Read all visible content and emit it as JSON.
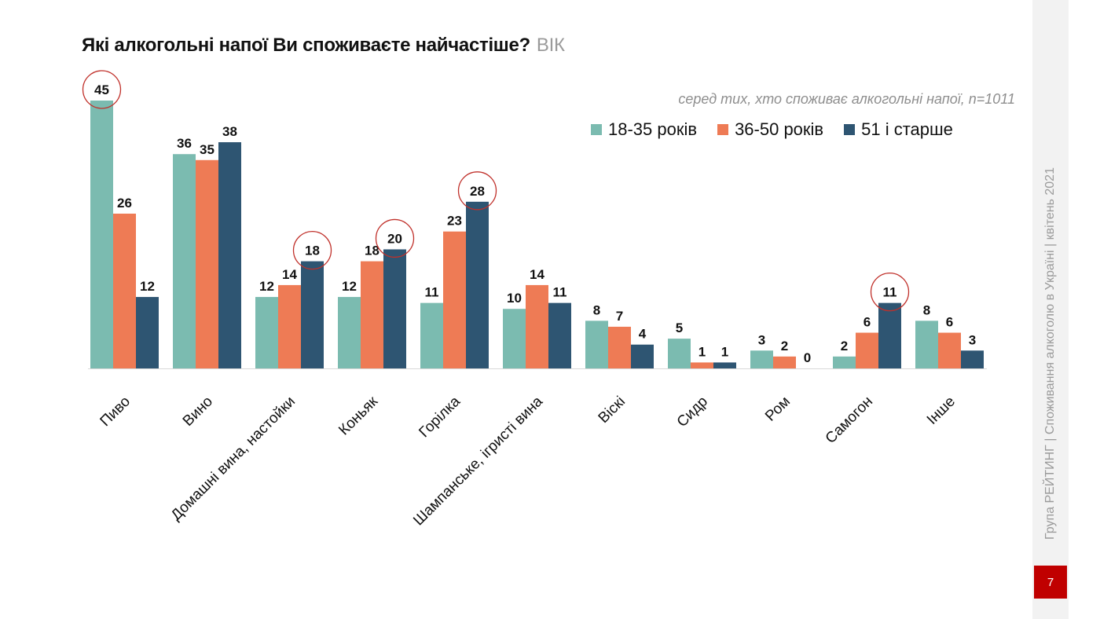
{
  "title": "Які алкогольні напої Ви споживаєте найчастіше?",
  "title_suffix": "ВІК",
  "note": "серед тих, хто споживає алкогольні напої, n=1011",
  "sidebar_text": "Група РЕЙТИНГ | Споживання алкоголю в Україні | квітень 2021",
  "page_number": "7",
  "colors": {
    "series_1": "#7bbbb0",
    "series_2": "#ee7b55",
    "series_3": "#2e5572",
    "highlight_circle": "#c0302a",
    "page_box": "#c00000"
  },
  "chart_data": {
    "type": "bar",
    "categories": [
      "Пиво",
      "Вино",
      "Домашні вина, настойки",
      "Коньяк",
      "Горілка",
      "Шампанське, ігристі вина",
      "Віскі",
      "Сидр",
      "Ром",
      "Самогон",
      "Інше"
    ],
    "series": [
      {
        "name": "18-35 років",
        "values": [
          45,
          36,
          12,
          12,
          11,
          10,
          8,
          5,
          3,
          2,
          8
        ]
      },
      {
        "name": "36-50 років",
        "values": [
          26,
          35,
          14,
          18,
          23,
          14,
          7,
          1,
          2,
          6,
          6
        ]
      },
      {
        "name": "51 і старше",
        "values": [
          12,
          38,
          18,
          20,
          28,
          11,
          4,
          1,
          0,
          11,
          3
        ]
      }
    ],
    "highlighted": [
      {
        "category": "Пиво",
        "series": "18-35 років"
      },
      {
        "category": "Домашні вина, настойки",
        "series": "51 і старше"
      },
      {
        "category": "Коньяк",
        "series": "51 і старше"
      },
      {
        "category": "Горілка",
        "series": "51 і старше"
      },
      {
        "category": "Самогон",
        "series": "51 і старше"
      }
    ],
    "ylim": [
      0,
      45
    ],
    "grid": false,
    "legend_position": "top-right"
  }
}
